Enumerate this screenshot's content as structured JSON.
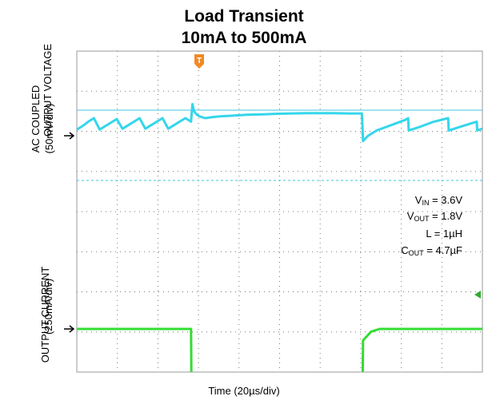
{
  "chart_data": {
    "type": "line",
    "title": "Load Transient",
    "subtitle": "10mA to 500mA",
    "xlabel": "Time (20µs/div)",
    "x_divisions": 10,
    "y_divisions": 8,
    "grid": true,
    "trigger_marker": "T",
    "channels": [
      {
        "name": "OUTPUT VOLTAGE",
        "ylabel_lines": [
          "OUTPUT VOLTAGE",
          "AC COUPLED",
          "(50mV/div)"
        ],
        "color": "#34d6ec",
        "x_div": [
          0.0,
          0.2,
          0.4,
          0.6,
          0.8,
          1.0,
          1.2,
          1.4,
          1.6,
          1.8,
          2.0,
          2.2,
          2.4,
          2.6,
          2.8,
          3.0,
          3.2,
          3.4,
          3.6,
          3.8,
          4.0,
          4.02,
          4.05,
          4.1,
          4.2,
          4.3,
          4.5,
          4.7,
          5.0,
          5.5,
          6.0,
          6.5,
          7.0,
          7.5,
          8.0,
          8.5,
          9.0,
          9.5,
          9.98,
          10.0,
          10.02,
          10.2,
          10.5,
          11.0,
          11.5,
          11.6,
          11.62,
          12.0,
          12.5,
          13.0,
          13.02,
          13.5,
          14.0,
          14.02,
          14.2
        ],
        "y_div": [
          -0.35,
          -0.55,
          -0.8,
          -1.0,
          -0.35,
          -0.55,
          -0.75,
          -0.95,
          -0.4,
          -0.6,
          -0.8,
          -1.0,
          -0.4,
          -0.6,
          -0.8,
          -1.0,
          -0.4,
          -0.6,
          -0.8,
          -1.0,
          -0.8,
          -1.2,
          -1.8,
          -1.4,
          -1.2,
          -1.1,
          -1.0,
          -1.05,
          -1.1,
          -1.15,
          -1.2,
          -1.22,
          -1.25,
          -1.27,
          -1.28,
          -1.28,
          -1.28,
          -1.27,
          -1.27,
          -0.6,
          0.3,
          0.0,
          -0.3,
          -0.6,
          -0.9,
          -1.0,
          -0.3,
          -0.5,
          -0.8,
          -1.0,
          -0.3,
          -0.55,
          -0.8,
          -0.3,
          -0.4
        ]
      },
      {
        "name": "OUTPUT CURRENT",
        "ylabel_lines": [
          "OUTPUT CURRENT",
          "(250mA/div)"
        ],
        "color": "#33dd33",
        "x_div": [
          0.0,
          4.0,
          4.02,
          10.0,
          10.02,
          10.3,
          10.6,
          14.2
        ],
        "y_div": [
          -4.0,
          -4.0,
          -2.0,
          -2.0,
          -3.7,
          -3.93,
          -4.0,
          -4.0
        ]
      }
    ],
    "annotations": {
      "vin": {
        "main": "V",
        "sub": "IN",
        "rest": " = 3.6V"
      },
      "vout": {
        "main": "V",
        "sub": "OUT",
        "rest": " = 1.8V"
      },
      "l": "L = 1µH",
      "cout": {
        "main": "C",
        "sub": "OUT",
        "rest": " = 4.7µF"
      }
    }
  }
}
